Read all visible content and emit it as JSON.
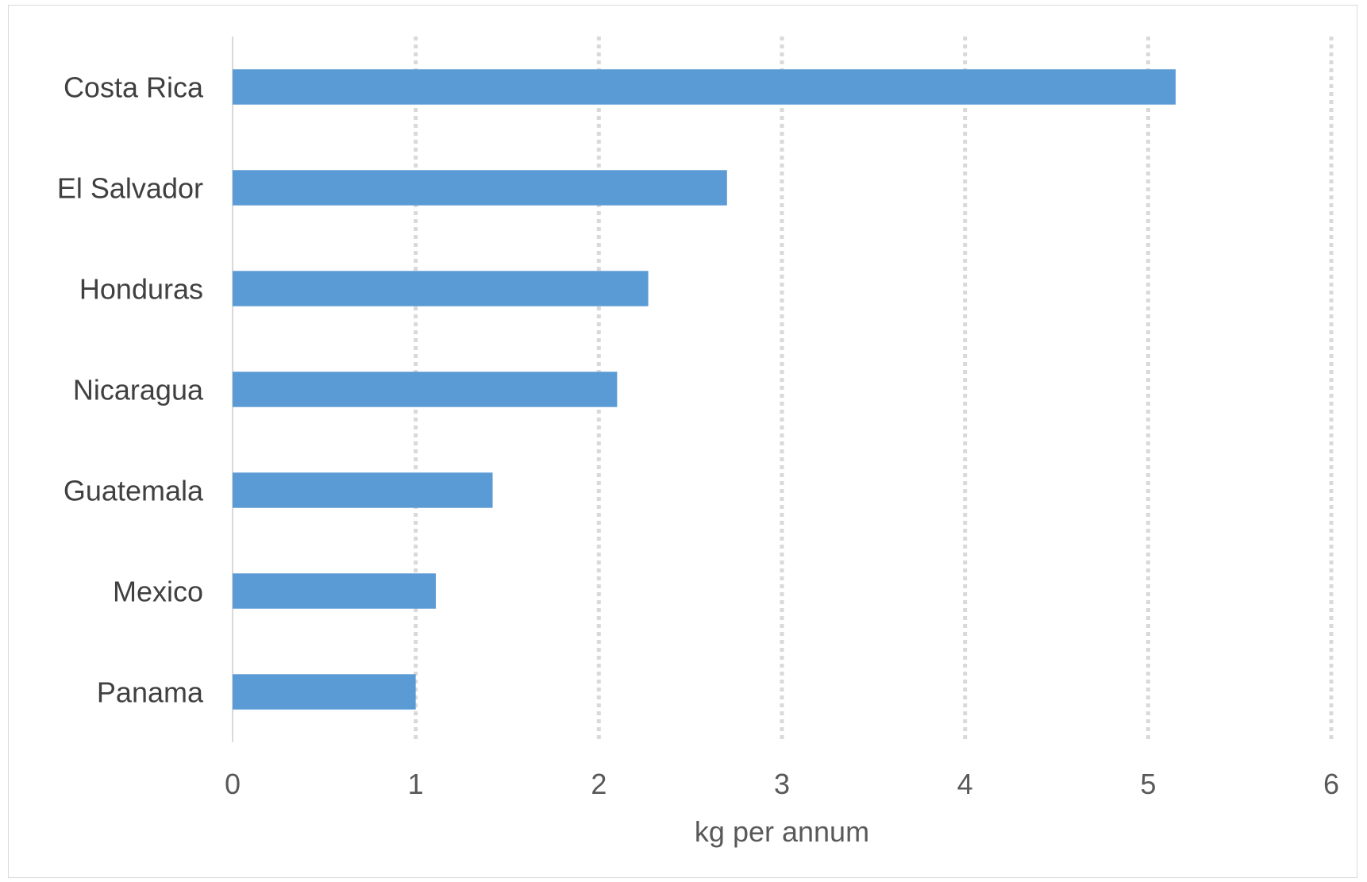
{
  "chart_data": {
    "type": "bar",
    "orientation": "horizontal",
    "categories": [
      "Costa Rica",
      "El Salvador",
      "Honduras",
      "Nicaragua",
      "Guatemala",
      "Mexico",
      "Panama"
    ],
    "values": [
      5.15,
      2.7,
      2.27,
      2.1,
      1.42,
      1.11,
      1.0
    ],
    "xlabel": "kg per annum",
    "ylabel": "",
    "xlim": [
      0,
      6
    ],
    "xticks": [
      0,
      1,
      2,
      3,
      4,
      5,
      6
    ],
    "xtick_labels": [
      "0",
      "1",
      "2",
      "3",
      "4",
      "5",
      "6"
    ],
    "grid": "vertical dotted",
    "legend": "none",
    "bar_color": "#5b9bd5",
    "grid_color": "#d9d9d9"
  }
}
